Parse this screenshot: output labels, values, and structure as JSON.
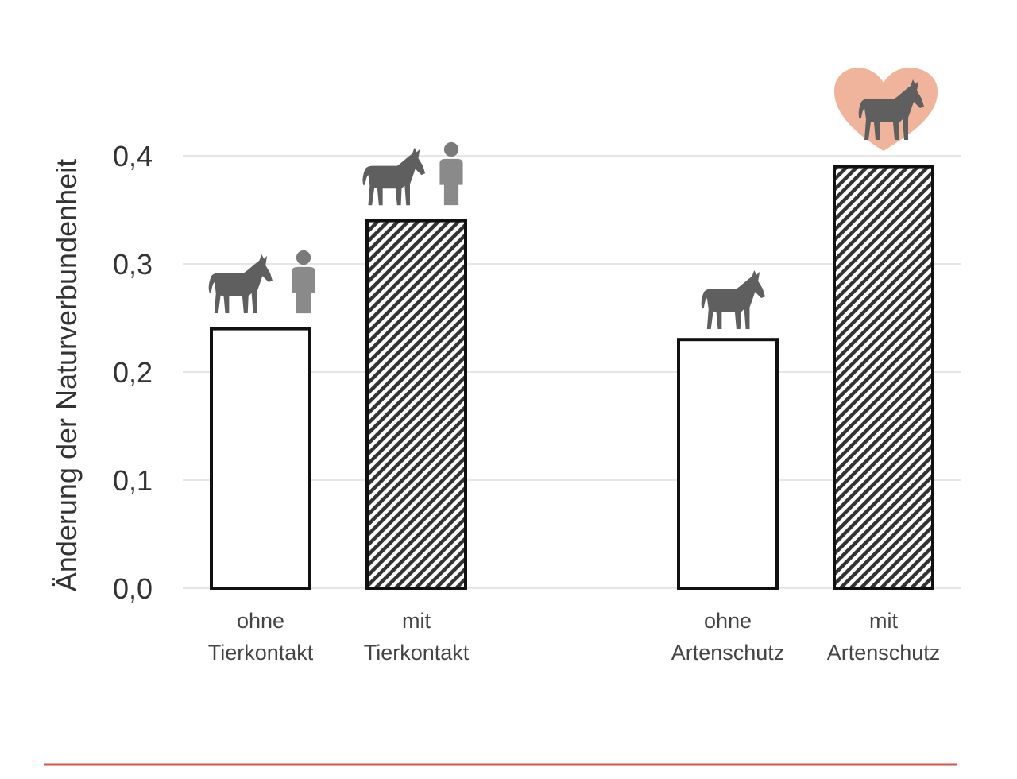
{
  "chart_data": {
    "type": "bar",
    "title": "",
    "xlabel": "",
    "ylabel": "Änderung der Naturverbundenheit",
    "ylim": [
      0,
      0.4
    ],
    "yticks": [
      "0,0",
      "0,1",
      "0,2",
      "0,3",
      "0,4"
    ],
    "ytick_values": [
      0,
      0.1,
      0.2,
      0.3,
      0.4
    ],
    "grid": true,
    "categories": [
      {
        "line1": "ohne",
        "line2": "Tierkontakt",
        "pattern": "none",
        "icon": "donkey-and-person-icon"
      },
      {
        "line1": "mit",
        "line2": "Tierkontakt",
        "pattern": "hatched",
        "icon": "donkey-touching-person-icon"
      },
      {
        "line1": "ohne",
        "line2": "Artenschutz",
        "pattern": "none",
        "icon": "donkey-icon"
      },
      {
        "line1": "mit",
        "line2": "Artenschutz",
        "pattern": "hatched",
        "icon": "donkey-in-heart-hands-icon"
      }
    ],
    "values": [
      0.24,
      0.34,
      0.23,
      0.39
    ]
  },
  "colors": {
    "bar_stroke": "#111111",
    "icon": "#5f5f5f",
    "heart": "#f0b49c",
    "grid": "#e6e6e6",
    "rule": "#d9534f"
  }
}
